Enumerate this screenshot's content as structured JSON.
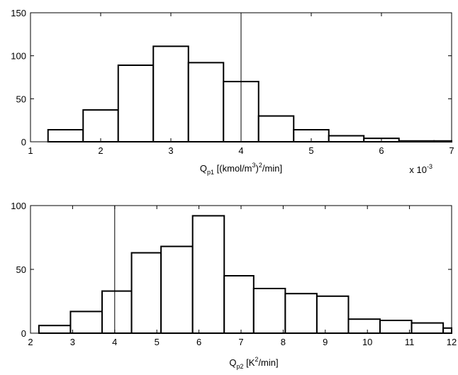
{
  "chart_data": [
    {
      "type": "bar",
      "xlim": [
        1,
        7
      ],
      "ylim": [
        0,
        150
      ],
      "xticks": [
        "1",
        "2",
        "3",
        "4",
        "5",
        "6",
        "7"
      ],
      "yticks": [
        "0",
        "50",
        "100",
        "150"
      ],
      "xlabel": {
        "main": "Q",
        "sub": "p1",
        "part1": " [(kmol/m",
        "sup1": "3",
        "part2": ")",
        "sup2": "2",
        "part3": "/min]"
      },
      "x_multiplier": {
        "text": "x 10",
        "exp": "-3"
      },
      "reference_line_x": 4,
      "bins": [
        {
          "x0": 1.25,
          "x1": 1.75,
          "count": 14
        },
        {
          "x0": 1.75,
          "x1": 2.25,
          "count": 37
        },
        {
          "x0": 2.25,
          "x1": 2.75,
          "count": 89
        },
        {
          "x0": 2.75,
          "x1": 3.25,
          "count": 111
        },
        {
          "x0": 3.25,
          "x1": 3.75,
          "count": 92
        },
        {
          "x0": 3.75,
          "x1": 4.25,
          "count": 70
        },
        {
          "x0": 4.25,
          "x1": 4.75,
          "count": 30
        },
        {
          "x0": 4.75,
          "x1": 5.25,
          "count": 14
        },
        {
          "x0": 5.25,
          "x1": 5.75,
          "count": 7
        },
        {
          "x0": 5.75,
          "x1": 6.25,
          "count": 4
        },
        {
          "x0": 6.25,
          "x1": 6.75,
          "count": 1
        },
        {
          "x0": 6.75,
          "x1": 7.0,
          "count": 1
        }
      ]
    },
    {
      "type": "bar",
      "xlim": [
        2,
        12
      ],
      "ylim": [
        0,
        100
      ],
      "xticks": [
        "2",
        "3",
        "4",
        "5",
        "6",
        "7",
        "8",
        "9",
        "10",
        "11",
        "12"
      ],
      "yticks": [
        "0",
        "50",
        "100"
      ],
      "xlabel": {
        "main": "Q",
        "sub": "p2",
        "part1": " [K",
        "sup1": "2",
        "part2": "/min]"
      },
      "reference_line_x": 4,
      "bins": [
        {
          "x0": 2.2,
          "x1": 2.95,
          "count": 6
        },
        {
          "x0": 2.95,
          "x1": 3.7,
          "count": 17
        },
        {
          "x0": 3.7,
          "x1": 4.4,
          "count": 33
        },
        {
          "x0": 4.4,
          "x1": 5.1,
          "count": 63
        },
        {
          "x0": 5.1,
          "x1": 5.85,
          "count": 68
        },
        {
          "x0": 5.85,
          "x1": 6.6,
          "count": 92
        },
        {
          "x0": 6.6,
          "x1": 7.3,
          "count": 45
        },
        {
          "x0": 7.3,
          "x1": 8.05,
          "count": 35
        },
        {
          "x0": 8.05,
          "x1": 8.8,
          "count": 31
        },
        {
          "x0": 8.8,
          "x1": 9.55,
          "count": 29
        },
        {
          "x0": 9.55,
          "x1": 10.3,
          "count": 11
        },
        {
          "x0": 10.3,
          "x1": 11.05,
          "count": 10
        },
        {
          "x0": 11.05,
          "x1": 11.8,
          "count": 8
        },
        {
          "x0": 11.8,
          "x1": 12.0,
          "count": 4
        }
      ]
    }
  ]
}
